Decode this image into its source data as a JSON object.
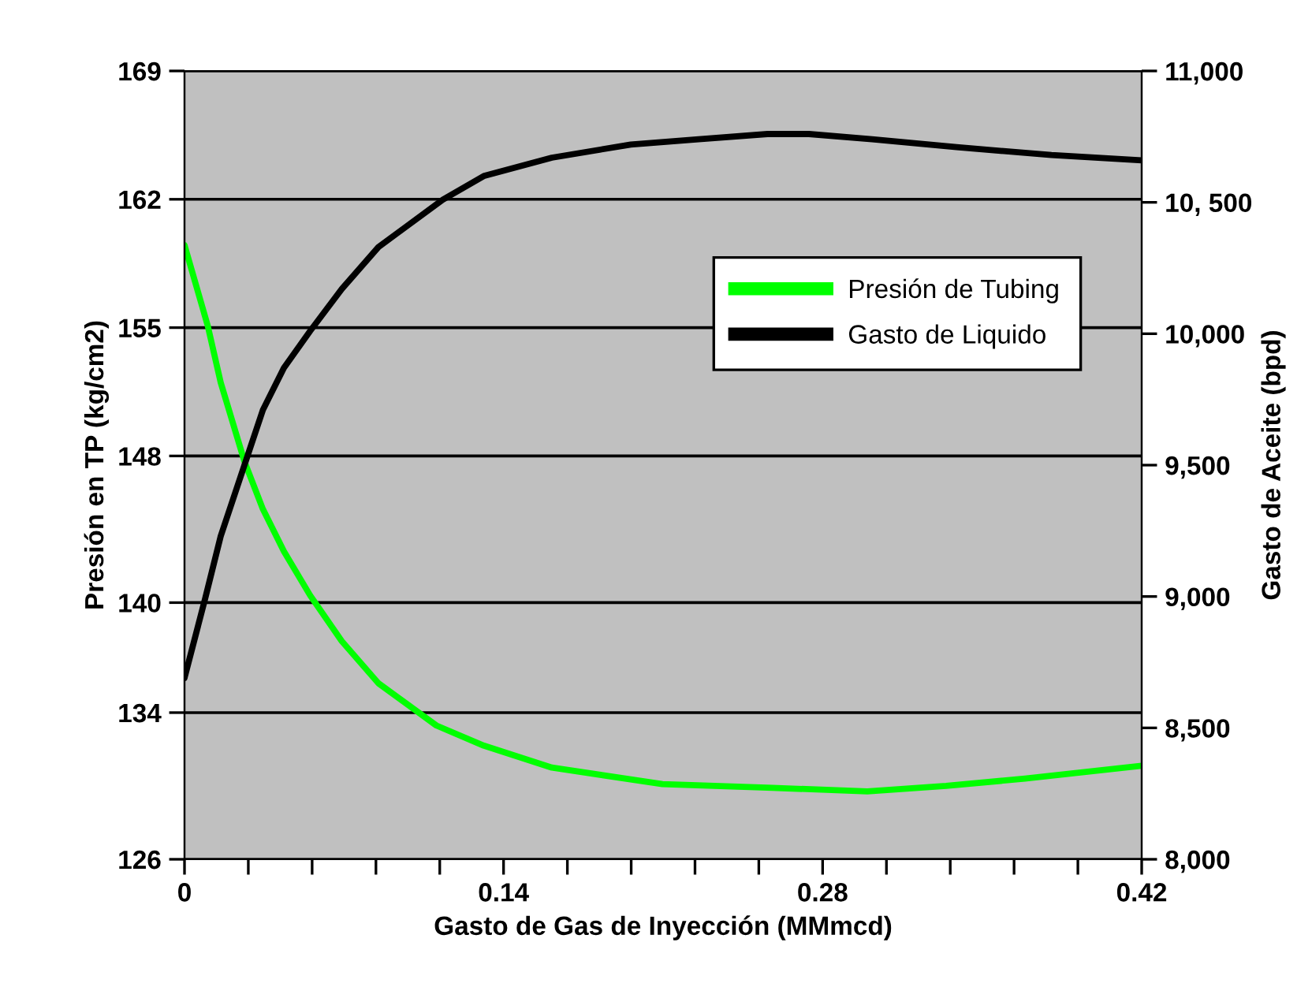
{
  "chart_data": {
    "type": "line",
    "xlabel": "Gasto de Gas de Inyección (MMmcd)",
    "ylabel": "Presión en TP (kg/cm2)",
    "y2label": "Gasto de Aceite (bpd)",
    "xlim": [
      0,
      0.42
    ],
    "xticks": [
      0,
      {
        "value": 0.028,
        "label": null
      },
      {
        "value": 0.056,
        "label": null
      },
      {
        "value": 0.084,
        "label": null
      },
      {
        "value": 0.112,
        "label": null
      },
      0.14,
      {
        "value": 0.168,
        "label": null
      },
      {
        "value": 0.196,
        "label": null
      },
      {
        "value": 0.224,
        "label": null
      },
      {
        "value": 0.252,
        "label": null
      },
      0.28,
      {
        "value": 0.308,
        "label": null
      },
      {
        "value": 0.336,
        "label": null
      },
      {
        "value": 0.364,
        "label": null
      },
      {
        "value": 0.392,
        "label": null
      },
      0.42
    ],
    "ylim": [
      126,
      169
    ],
    "yticks": [
      126,
      134,
      140,
      148,
      155,
      162,
      169
    ],
    "y2lim": [
      8000,
      11000
    ],
    "y2ticks": [
      {
        "value": 8000,
        "label": "8,000"
      },
      {
        "value": 8500,
        "label": "8,500"
      },
      {
        "value": 9000,
        "label": "9,000"
      },
      {
        "value": 9500,
        "label": "9,500"
      },
      {
        "value": 10000,
        "label": "10,000"
      },
      {
        "value": 10500,
        "label": "10, 500"
      },
      {
        "value": 11000,
        "label": "11,000"
      }
    ],
    "grid": "y",
    "legend": "right",
    "marker": "none",
    "series": [
      {
        "name": "Presión de Tubing",
        "color": "#00ff00",
        "x": [
          0,
          0.0102,
          0.0159,
          0.0263,
          0.0344,
          0.0436,
          0.0551,
          0.069,
          0.0851,
          0.1105,
          0.1313,
          0.1612,
          0.2097,
          0.258,
          0.2996,
          0.3342,
          0.3688,
          0.42
        ],
        "values": [
          159.5,
          155.1,
          152.0,
          147.7,
          145.1,
          142.8,
          140.4,
          137.9,
          135.6,
          133.3,
          132.2,
          131.0,
          130.1,
          129.9,
          129.7,
          130.0,
          130.4,
          131.1
        ]
      },
      {
        "name": "Gasto de Liquido",
        "color": "#000000",
        "axis": "y2",
        "x": [
          0,
          0.009,
          0.0159,
          0.0263,
          0.0344,
          0.0436,
          0.0551,
          0.069,
          0.0851,
          0.1133,
          0.1313,
          0.1612,
          0.1958,
          0.2256,
          0.2558,
          0.274,
          0.3017,
          0.3388,
          0.3804,
          0.42
        ],
        "values": [
          8690,
          8990,
          9230,
          9500,
          9710,
          9870,
          10010,
          10170,
          10330,
          10510,
          10600,
          10670,
          10720,
          10740,
          10760,
          10760,
          10740,
          10710,
          10680,
          10660
        ]
      }
    ]
  }
}
